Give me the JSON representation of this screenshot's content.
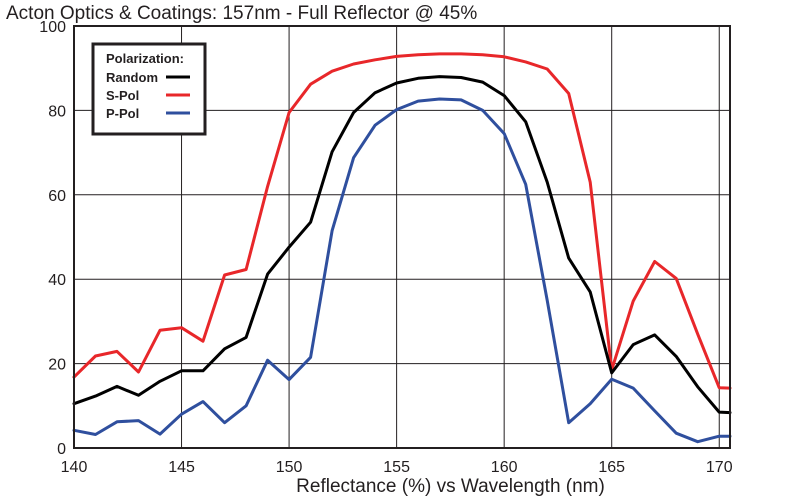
{
  "chart_data": {
    "type": "line",
    "title": "Acton Optics & Coatings:  157nm - Full Reflector @ 45%",
    "xlabel": "Reflectance (%)  vs  Wavelength (nm)",
    "ylabel": "",
    "xlim": [
      140,
      170.5
    ],
    "ylim": [
      0,
      100
    ],
    "xticks": [
      140,
      145,
      150,
      155,
      160,
      165,
      170
    ],
    "yticks": [
      0,
      20,
      40,
      60,
      80,
      100
    ],
    "grid": true,
    "legend": {
      "title": "Polarization:",
      "placement": "top-left"
    },
    "x": [
      140,
      141,
      142,
      143,
      144,
      145,
      146,
      147,
      148,
      149,
      150,
      151,
      152,
      153,
      154,
      155,
      156,
      157,
      158,
      159,
      160,
      161,
      162,
      163,
      164,
      165,
      166,
      167,
      168,
      169,
      170,
      170.5
    ],
    "series": [
      {
        "name": "Random",
        "color": "#000000",
        "values": [
          10.5,
          12.3,
          14.6,
          12.5,
          15.8,
          18.3,
          18.3,
          23.5,
          26.2,
          41.2,
          47.6,
          53.5,
          70.2,
          79.5,
          84.2,
          86.5,
          87.6,
          88.0,
          87.8,
          86.7,
          83.5,
          77.3,
          63.0,
          45.0,
          37.0,
          17.8,
          24.5,
          26.8,
          21.7,
          14.5,
          8.5,
          8.4
        ]
      },
      {
        "name": "S-Pol",
        "color": "#e8272a",
        "values": [
          16.8,
          21.8,
          22.9,
          18.0,
          27.9,
          28.5,
          25.3,
          41.0,
          42.3,
          62.0,
          79.5,
          86.2,
          89.3,
          91.0,
          92.0,
          92.8,
          93.2,
          93.4,
          93.4,
          93.2,
          92.7,
          91.5,
          89.8,
          84.0,
          63.0,
          18.5,
          34.8,
          44.2,
          40.2,
          27.0,
          14.3,
          14.2
        ]
      },
      {
        "name": "P-Pol",
        "color": "#2f4f9e",
        "values": [
          4.2,
          3.2,
          6.2,
          6.5,
          3.3,
          8.0,
          11.0,
          6.0,
          10.0,
          20.8,
          16.2,
          21.5,
          51.5,
          68.8,
          76.5,
          80.2,
          82.2,
          82.7,
          82.5,
          80.0,
          74.5,
          62.5,
          35.0,
          6.0,
          10.5,
          16.3,
          14.2,
          8.8,
          3.5,
          1.5,
          2.8,
          2.8
        ]
      }
    ]
  }
}
